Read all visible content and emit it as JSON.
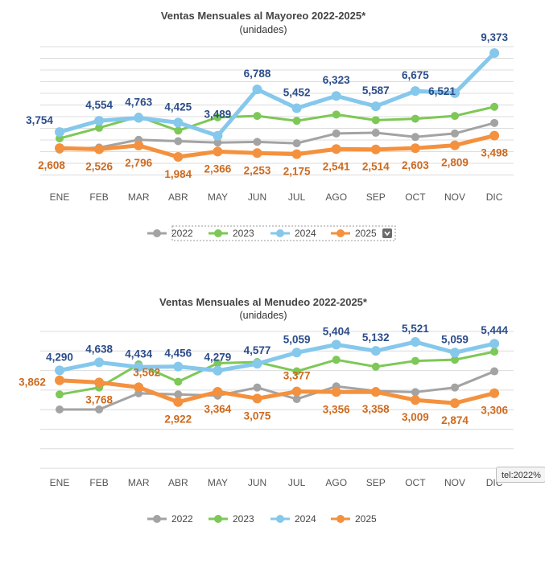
{
  "colors": {
    "2022": "#a3a3a3",
    "2023": "#7dc856",
    "2024": "#85c8ec",
    "2025": "#f4913e",
    "label_2024": "#2b4c8a",
    "label_2025": "#cd6a1f",
    "grid": "#dcdcdc"
  },
  "tooltip": {
    "text": "tel:2022%"
  },
  "chart_data": [
    {
      "type": "line",
      "title": "Ventas Mensuales al Mayoreo 2022-2025*",
      "subtitle": "(unidades)",
      "categories": [
        "ENE",
        "FEB",
        "MAR",
        "ABR",
        "MAY",
        "JUN",
        "JUL",
        "AGO",
        "SEP",
        "OCT",
        "NOV",
        "DIC"
      ],
      "ylim": [
        0,
        10000
      ],
      "grid": true,
      "legend": [
        "2022",
        "2023",
        "2024",
        "2025"
      ],
      "legend_dropdown": true,
      "series": [
        {
          "name": "2022",
          "values": [
            2500,
            2650,
            3200,
            3100,
            3000,
            3050,
            2950,
            3650,
            3700,
            3400,
            3650,
            4400
          ]
        },
        {
          "name": "2023",
          "values": [
            3300,
            4050,
            4850,
            3850,
            4800,
            4900,
            4550,
            5000,
            4600,
            4700,
            4900,
            5550
          ]
        },
        {
          "name": "2024",
          "values": [
            3754,
            4554,
            4763,
            4425,
            3489,
            6788,
            5452,
            6323,
            5587,
            6675,
            6521,
            9373
          ]
        },
        {
          "name": "2025",
          "values": [
            2608,
            2526,
            2796,
            1984,
            2366,
            2253,
            2175,
            2541,
            2514,
            2603,
            2809,
            3498
          ]
        }
      ],
      "labels_2024": [
        "3,754",
        "4,554",
        "4,763",
        "4,425",
        "3,489",
        "6,788",
        "5,452",
        "6,323",
        "5,587",
        "6,675",
        "6,521",
        "9,373"
      ],
      "labels_2025": [
        "2,608",
        "2,526",
        "2,796",
        "1,984",
        "2,366",
        "2,253",
        "2,175",
        "2,541",
        "2,514",
        "2,603",
        "2,809",
        "3,498"
      ]
    },
    {
      "type": "line",
      "title": "Ventas Mensuales al Menudeo 2022-2025*",
      "subtitle": "(unidades)",
      "categories": [
        "ENE",
        "FEB",
        "MAR",
        "ABR",
        "MAY",
        "JUN",
        "JUL",
        "AGO",
        "SEP",
        "OCT",
        "NOV",
        "DIC"
      ],
      "ylim": [
        0,
        7000
      ],
      "grid": true,
      "legend": [
        "2022",
        "2023",
        "2024",
        "2025"
      ],
      "legend_dropdown": false,
      "series": [
        {
          "name": "2022",
          "values": [
            2600,
            2600,
            3300,
            3250,
            3200,
            3550,
            3050,
            3600,
            3400,
            3350,
            3550,
            4250
          ]
        },
        {
          "name": "2023",
          "values": [
            3250,
            3550,
            4550,
            3800,
            4600,
            4650,
            4250,
            4750,
            4450,
            4700,
            4750,
            5100
          ]
        },
        {
          "name": "2024",
          "values": [
            4290,
            4638,
            4434,
            4456,
            4279,
            4577,
            5059,
            5404,
            5132,
            5521,
            5059,
            5444
          ]
        },
        {
          "name": "2025",
          "values": [
            3862,
            3768,
            3562,
            2922,
            3364,
            3075,
            3377,
            3356,
            3358,
            3009,
            2874,
            3306
          ]
        }
      ],
      "labels_2024": [
        "4,290",
        "4,638",
        "4,434",
        "4,456",
        "4,279",
        "4,577",
        "5,059",
        "5,404",
        "5,132",
        "5,521",
        "5,059",
        "5,444"
      ],
      "labels_2025": [
        "3,862",
        "3,768",
        "3,562",
        "2,922",
        "3,364",
        "3,075",
        "3,377",
        "3,356",
        "3,358",
        "3,009",
        "2,874",
        "3,306"
      ]
    }
  ]
}
